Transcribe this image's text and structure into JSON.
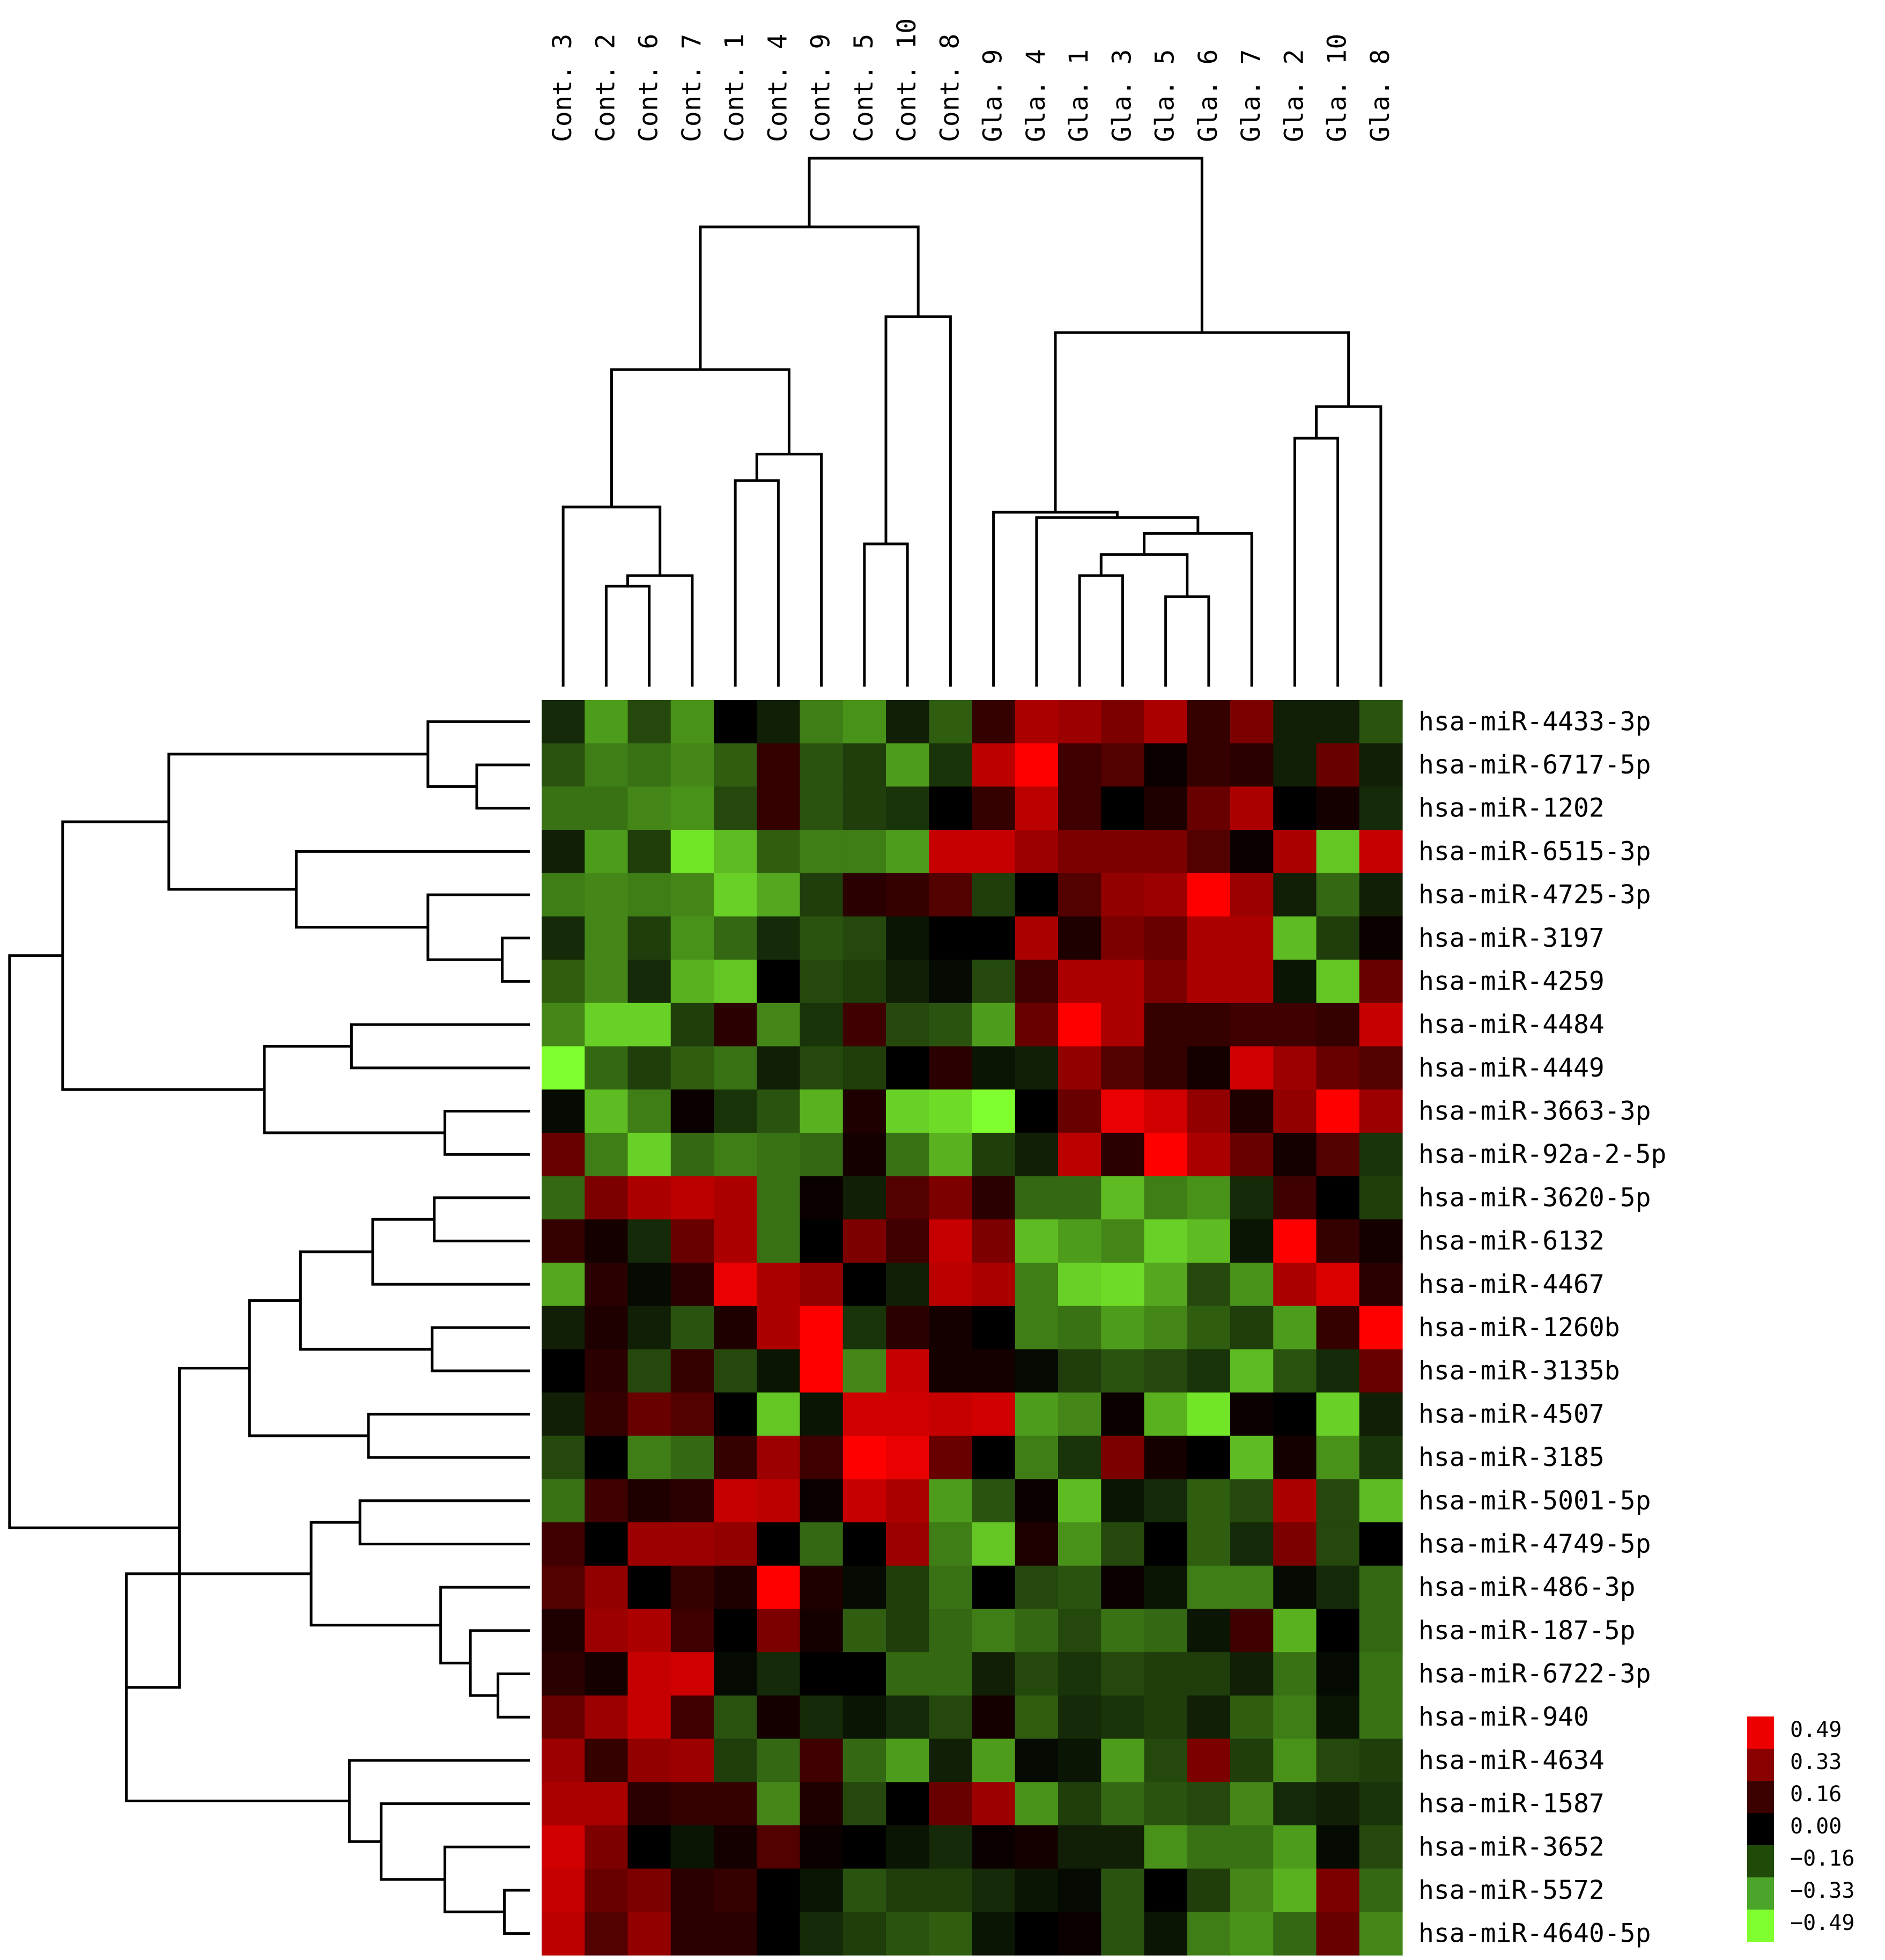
{
  "chart_data": {
    "type": "heatmap",
    "title": "",
    "xlabel": "",
    "ylabel": "",
    "columns": [
      "Cont. 3",
      "Cont. 2",
      "Cont. 6",
      "Cont. 7",
      "Cont. 1",
      "Cont. 4",
      "Cont. 9",
      "Cont. 5",
      "Cont. 10",
      "Cont. 8",
      "Gla. 9",
      "Gla. 4",
      "Gla. 1",
      "Gla. 3",
      "Gla. 5",
      "Gla. 6",
      "Gla. 7",
      "Gla. 2",
      "Gla. 10",
      "Gla. 8"
    ],
    "rows": [
      "hsa-miR-4433-3p",
      "hsa-miR-6717-5p",
      "hsa-miR-1202",
      "hsa-miR-6515-3p",
      "hsa-miR-4725-3p",
      "hsa-miR-3197",
      "hsa-miR-4259",
      "hsa-miR-4484",
      "hsa-miR-4449",
      "hsa-miR-3663-3p",
      "hsa-miR-92a-2-5p",
      "hsa-miR-3620-5p",
      "hsa-miR-6132",
      "hsa-miR-4467",
      "hsa-miR-1260b",
      "hsa-miR-3135b",
      "hsa-miR-4507",
      "hsa-miR-3185",
      "hsa-miR-5001-5p",
      "hsa-miR-4749-5p",
      "hsa-miR-486-3p",
      "hsa-miR-187-5p",
      "hsa-miR-6722-3p",
      "hsa-miR-940",
      "hsa-miR-4634",
      "hsa-miR-1587",
      "hsa-miR-3652",
      "hsa-miR-5572",
      "hsa-miR-4640-5p"
    ],
    "values": [
      [
        -0.08,
        -0.3,
        -0.14,
        -0.28,
        0.0,
        -0.06,
        -0.24,
        -0.28,
        -0.06,
        -0.18,
        0.1,
        0.33,
        0.3,
        0.24,
        0.33,
        0.1,
        0.24,
        -0.06,
        -0.06,
        -0.16
      ],
      [
        -0.16,
        -0.24,
        -0.22,
        -0.26,
        -0.18,
        0.1,
        -0.16,
        -0.12,
        -0.3,
        -0.1,
        0.36,
        0.49,
        0.12,
        0.16,
        0.02,
        0.1,
        0.08,
        -0.06,
        0.2,
        -0.06
      ],
      [
        -0.22,
        -0.22,
        -0.26,
        -0.28,
        -0.14,
        0.1,
        -0.16,
        -0.12,
        -0.1,
        0.0,
        0.1,
        0.36,
        0.12,
        0.0,
        0.06,
        0.2,
        0.33,
        0.0,
        0.04,
        -0.08
      ],
      [
        -0.06,
        -0.3,
        -0.12,
        -0.44,
        -0.36,
        -0.18,
        -0.24,
        -0.24,
        -0.3,
        0.38,
        0.38,
        0.3,
        0.24,
        0.24,
        0.24,
        0.16,
        0.02,
        0.33,
        -0.38,
        0.38
      ],
      [
        -0.24,
        -0.26,
        -0.24,
        -0.26,
        -0.4,
        -0.32,
        -0.12,
        0.08,
        0.1,
        0.16,
        -0.12,
        0.0,
        0.16,
        0.28,
        0.3,
        0.49,
        0.3,
        -0.06,
        -0.2,
        -0.06
      ],
      [
        -0.08,
        -0.26,
        -0.12,
        -0.28,
        -0.2,
        -0.08,
        -0.16,
        -0.14,
        -0.04,
        0.0,
        0.0,
        0.33,
        0.06,
        0.24,
        0.2,
        0.33,
        0.33,
        -0.36,
        -0.12,
        0.02
      ],
      [
        -0.18,
        -0.26,
        -0.08,
        -0.34,
        -0.38,
        0.0,
        -0.14,
        -0.12,
        -0.06,
        -0.02,
        -0.14,
        0.12,
        0.33,
        0.33,
        0.24,
        0.33,
        0.33,
        -0.04,
        -0.38,
        0.2
      ],
      [
        -0.26,
        -0.4,
        -0.4,
        -0.12,
        0.08,
        -0.26,
        -0.1,
        0.12,
        -0.14,
        -0.16,
        -0.3,
        0.2,
        0.49,
        0.33,
        0.1,
        0.1,
        0.12,
        0.12,
        0.1,
        0.38
      ],
      [
        -0.49,
        -0.2,
        -0.12,
        -0.18,
        -0.22,
        -0.06,
        -0.14,
        -0.12,
        0.0,
        0.08,
        -0.04,
        -0.06,
        0.28,
        0.16,
        0.1,
        0.04,
        0.4,
        0.3,
        0.2,
        0.16
      ],
      [
        -0.02,
        -0.36,
        -0.24,
        0.02,
        -0.1,
        -0.16,
        -0.34,
        0.06,
        -0.4,
        -0.42,
        -0.49,
        0.0,
        0.2,
        0.45,
        0.4,
        0.28,
        0.06,
        0.28,
        0.49,
        0.3
      ],
      [
        0.2,
        -0.24,
        -0.4,
        -0.2,
        -0.24,
        -0.22,
        -0.2,
        0.04,
        -0.22,
        -0.34,
        -0.12,
        -0.06,
        0.36,
        0.08,
        0.49,
        0.33,
        0.2,
        0.04,
        0.16,
        -0.1
      ],
      [
        -0.2,
        0.24,
        0.33,
        0.36,
        0.33,
        -0.22,
        0.02,
        -0.06,
        0.16,
        0.24,
        0.08,
        -0.2,
        -0.2,
        -0.36,
        -0.24,
        -0.28,
        -0.08,
        0.12,
        0.0,
        -0.12
      ],
      [
        0.1,
        0.04,
        -0.08,
        0.2,
        0.33,
        -0.22,
        0.0,
        0.24,
        0.12,
        0.38,
        0.24,
        -0.36,
        -0.3,
        -0.26,
        -0.4,
        -0.36,
        -0.04,
        0.49,
        0.1,
        0.04
      ],
      [
        -0.32,
        0.08,
        -0.02,
        0.08,
        0.45,
        0.33,
        0.28,
        0.0,
        -0.06,
        0.36,
        0.33,
        -0.24,
        -0.4,
        -0.42,
        -0.32,
        -0.14,
        -0.28,
        0.33,
        0.42,
        0.08
      ],
      [
        -0.06,
        0.06,
        -0.06,
        -0.16,
        0.06,
        0.33,
        0.49,
        -0.1,
        0.08,
        0.04,
        0.0,
        -0.24,
        -0.22,
        -0.3,
        -0.26,
        -0.18,
        -0.12,
        -0.3,
        0.1,
        0.49
      ],
      [
        0.0,
        0.08,
        -0.14,
        0.1,
        -0.14,
        -0.04,
        0.49,
        -0.26,
        0.38,
        0.04,
        0.04,
        -0.02,
        -0.12,
        -0.16,
        -0.14,
        -0.1,
        -0.36,
        -0.16,
        -0.08,
        0.2
      ],
      [
        -0.06,
        0.1,
        0.2,
        0.16,
        0.0,
        -0.38,
        -0.04,
        0.4,
        0.4,
        0.38,
        0.4,
        -0.3,
        -0.26,
        0.02,
        -0.34,
        -0.44,
        0.02,
        0.0,
        -0.4,
        -0.06
      ],
      [
        -0.14,
        0.0,
        -0.24,
        -0.2,
        0.1,
        0.3,
        0.12,
        0.49,
        0.45,
        0.2,
        0.0,
        -0.24,
        -0.1,
        0.24,
        0.04,
        0.0,
        -0.36,
        0.04,
        -0.28,
        -0.1
      ],
      [
        -0.22,
        0.12,
        0.06,
        0.08,
        0.38,
        0.36,
        0.02,
        0.38,
        0.33,
        -0.3,
        -0.16,
        0.02,
        -0.36,
        -0.04,
        -0.08,
        -0.18,
        -0.14,
        0.33,
        -0.14,
        -0.36
      ],
      [
        0.12,
        0.0,
        0.3,
        0.3,
        0.28,
        0.0,
        -0.2,
        0.0,
        0.3,
        -0.24,
        -0.38,
        0.06,
        -0.28,
        -0.14,
        0.0,
        -0.18,
        -0.08,
        0.24,
        -0.14,
        0.0
      ],
      [
        0.16,
        0.28,
        0.0,
        0.1,
        0.06,
        0.49,
        0.06,
        -0.02,
        -0.12,
        -0.22,
        0.0,
        -0.14,
        -0.16,
        0.02,
        -0.04,
        -0.24,
        -0.24,
        -0.02,
        -0.08,
        -0.2
      ],
      [
        0.06,
        0.3,
        0.33,
        0.12,
        0.0,
        0.24,
        0.04,
        -0.18,
        -0.12,
        -0.2,
        -0.24,
        -0.2,
        -0.14,
        -0.22,
        -0.2,
        -0.04,
        0.12,
        -0.34,
        0.0,
        -0.2
      ],
      [
        0.08,
        0.04,
        0.38,
        0.4,
        -0.02,
        -0.08,
        0.0,
        0.0,
        -0.2,
        -0.2,
        -0.06,
        -0.14,
        -0.1,
        -0.14,
        -0.12,
        -0.12,
        -0.06,
        -0.22,
        -0.02,
        -0.22
      ],
      [
        0.2,
        0.3,
        0.38,
        0.12,
        -0.16,
        0.04,
        -0.08,
        -0.04,
        -0.08,
        -0.14,
        0.04,
        -0.18,
        -0.08,
        -0.1,
        -0.12,
        -0.06,
        -0.18,
        -0.24,
        -0.04,
        -0.22
      ],
      [
        0.3,
        0.1,
        0.28,
        0.3,
        -0.12,
        -0.2,
        0.12,
        -0.2,
        -0.3,
        -0.06,
        -0.3,
        -0.02,
        -0.04,
        -0.3,
        -0.14,
        0.24,
        -0.12,
        -0.28,
        -0.14,
        -0.12
      ],
      [
        0.33,
        0.33,
        0.08,
        0.1,
        0.1,
        -0.26,
        0.06,
        -0.14,
        0.0,
        0.2,
        0.3,
        -0.28,
        -0.12,
        -0.2,
        -0.16,
        -0.14,
        -0.26,
        -0.08,
        -0.06,
        -0.1
      ],
      [
        0.4,
        0.24,
        0.0,
        -0.04,
        0.04,
        0.16,
        0.02,
        0.0,
        -0.04,
        -0.08,
        0.02,
        0.04,
        -0.06,
        -0.06,
        -0.28,
        -0.22,
        -0.22,
        -0.3,
        -0.02,
        -0.14
      ],
      [
        0.38,
        0.2,
        0.24,
        0.08,
        0.1,
        0.0,
        -0.04,
        -0.16,
        -0.12,
        -0.12,
        -0.08,
        -0.04,
        -0.02,
        -0.16,
        0.0,
        -0.12,
        -0.26,
        -0.34,
        0.24,
        -0.2
      ],
      [
        0.36,
        0.16,
        0.28,
        0.08,
        0.08,
        0.0,
        -0.08,
        -0.12,
        -0.16,
        -0.18,
        -0.04,
        0.0,
        0.02,
        -0.16,
        -0.04,
        -0.24,
        -0.28,
        -0.2,
        0.2,
        -0.26
      ]
    ],
    "color_scale": {
      "min": -0.49,
      "max": 0.49,
      "low_color": "#80ff2e",
      "mid_color": "#000000",
      "high_color": "#ff0000",
      "ticks": [
        "0.49",
        "0.33",
        "0.16",
        "0.00",
        "−0.16",
        "−0.33",
        "−0.49"
      ]
    },
    "legend_colors": [
      "#ee0000",
      "#8b0000",
      "#3b0000",
      "#000000",
      "#1f4a08",
      "#4aa52a",
      "#80ff2e"
    ],
    "legend_position": "bottom-right",
    "column_dendrogram": true,
    "row_dendrogram": true
  }
}
